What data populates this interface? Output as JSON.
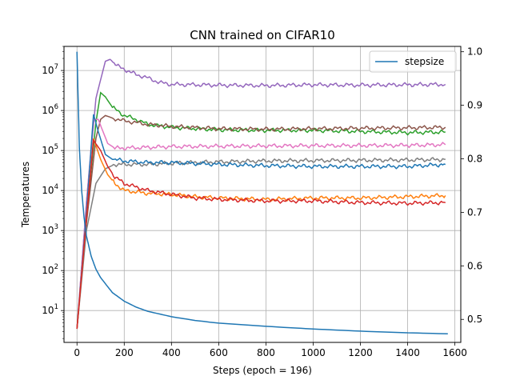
{
  "chart_data": {
    "type": "line",
    "title": "CNN trained on CIFAR10",
    "xlabel": "Steps (epoch = 196)",
    "ylabel": "Temperatures",
    "x_ticks": [
      "0",
      "200",
      "400",
      "600",
      "800",
      "1000",
      "1200",
      "1400",
      "1600"
    ],
    "xlim": [
      -55,
      1625
    ],
    "left_axis": {
      "scale": "log",
      "ylim": [
        1.6,
        40000000
      ],
      "ticks": [
        {
          "base": "10",
          "exp": "1"
        },
        {
          "base": "10",
          "exp": "2"
        },
        {
          "base": "10",
          "exp": "3"
        },
        {
          "base": "10",
          "exp": "4"
        },
        {
          "base": "10",
          "exp": "5"
        },
        {
          "base": "10",
          "exp": "6"
        },
        {
          "base": "10",
          "exp": "7"
        }
      ]
    },
    "right_axis": {
      "scale": "linear",
      "ylim": [
        0.457,
        1.01
      ],
      "ticks": [
        "0.5",
        "0.6",
        "0.7",
        "0.8",
        "0.9",
        "1.0"
      ]
    },
    "grid": true,
    "legend": {
      "position": "top-right",
      "entries": [
        "stepsize"
      ]
    },
    "stepsize": {
      "name": "stepsize",
      "axis": "right",
      "color": "#1f77b4",
      "x": [
        0,
        10,
        20,
        30,
        40,
        60,
        80,
        100,
        150,
        200,
        250,
        300,
        400,
        500,
        600,
        800,
        1000,
        1200,
        1400,
        1570
      ],
      "y": [
        1.0,
        0.82,
        0.74,
        0.69,
        0.656,
        0.618,
        0.594,
        0.578,
        0.55,
        0.534,
        0.523,
        0.515,
        0.505,
        0.498,
        0.493,
        0.487,
        0.482,
        0.478,
        0.475,
        0.473
      ]
    },
    "temperature_series": [
      {
        "color": "#9467bd",
        "x": [
          0,
          40,
          80,
          120,
          140,
          180,
          250,
          300,
          350,
          400,
          600,
          800,
          1000,
          1200,
          1400,
          1560
        ],
        "y": [
          3.5,
          5000,
          2000000,
          17000000,
          19000000,
          12000000,
          8000000,
          6500000,
          5000000,
          4500000,
          4300000,
          4200000,
          4400000,
          4300000,
          4400000,
          4500000
        ]
      },
      {
        "color": "#2ca02c",
        "x": [
          0,
          40,
          80,
          100,
          120,
          150,
          200,
          250,
          300,
          400,
          600,
          800,
          1000,
          1200,
          1400,
          1560
        ],
        "y": [
          3.5,
          2000,
          500000,
          2800000,
          2200000,
          1200000,
          750000,
          600000,
          450000,
          380000,
          330000,
          320000,
          320000,
          300000,
          280000,
          290000
        ]
      },
      {
        "color": "#8c564b",
        "x": [
          0,
          40,
          80,
          100,
          120,
          150,
          200,
          250,
          300,
          400,
          600,
          800,
          1000,
          1200,
          1400,
          1560
        ],
        "y": [
          3.5,
          1500,
          200000,
          600000,
          750000,
          650000,
          550000,
          500000,
          450000,
          400000,
          350000,
          340000,
          350000,
          360000,
          370000,
          380000
        ]
      },
      {
        "color": "#e377c2",
        "x": [
          0,
          40,
          70,
          90,
          110,
          130,
          160,
          200,
          300,
          400,
          600,
          800,
          1000,
          1200,
          1400,
          1560
        ],
        "y": [
          3.5,
          5000,
          600000,
          600000,
          300000,
          150000,
          115000,
          115000,
          120000,
          125000,
          128000,
          130000,
          132000,
          133000,
          135000,
          140000
        ]
      },
      {
        "color": "#7f7f7f",
        "x": [
          0,
          40,
          80,
          120,
          160,
          200,
          300,
          400,
          500,
          600,
          800,
          1000,
          1200,
          1400,
          1560
        ],
        "y": [
          3.5,
          1000,
          15000,
          35000,
          45000,
          45000,
          45000,
          48000,
          50000,
          52000,
          55000,
          56000,
          57000,
          58000,
          60000
        ]
      },
      {
        "color": "#1f77b4",
        "x": [
          0,
          40,
          70,
          90,
          120,
          150,
          200,
          300,
          400,
          600,
          800,
          1000,
          1200,
          1400,
          1560
        ],
        "y": [
          3.5,
          3000,
          800000,
          300000,
          80000,
          60000,
          55000,
          50000,
          50000,
          45000,
          42000,
          40000,
          40000,
          40000,
          45000
        ]
      },
      {
        "color": "#ff7f0e",
        "x": [
          0,
          40,
          70,
          100,
          130,
          160,
          200,
          300,
          400,
          500,
          600,
          800,
          1000,
          1200,
          1400,
          1560
        ],
        "y": [
          3.5,
          2000,
          200000,
          60000,
          25000,
          15000,
          10000,
          8500,
          8000,
          7000,
          6500,
          6000,
          6500,
          6500,
          7000,
          7500
        ]
      },
      {
        "color": "#d62728",
        "x": [
          0,
          40,
          70,
          100,
          130,
          160,
          200,
          300,
          400,
          500,
          600,
          800,
          1000,
          1200,
          1400,
          1560
        ],
        "y": [
          3.5,
          2000,
          180000,
          100000,
          40000,
          22000,
          15000,
          10000,
          8000,
          6500,
          6000,
          5500,
          5500,
          5000,
          4800,
          5000
        ]
      }
    ]
  }
}
